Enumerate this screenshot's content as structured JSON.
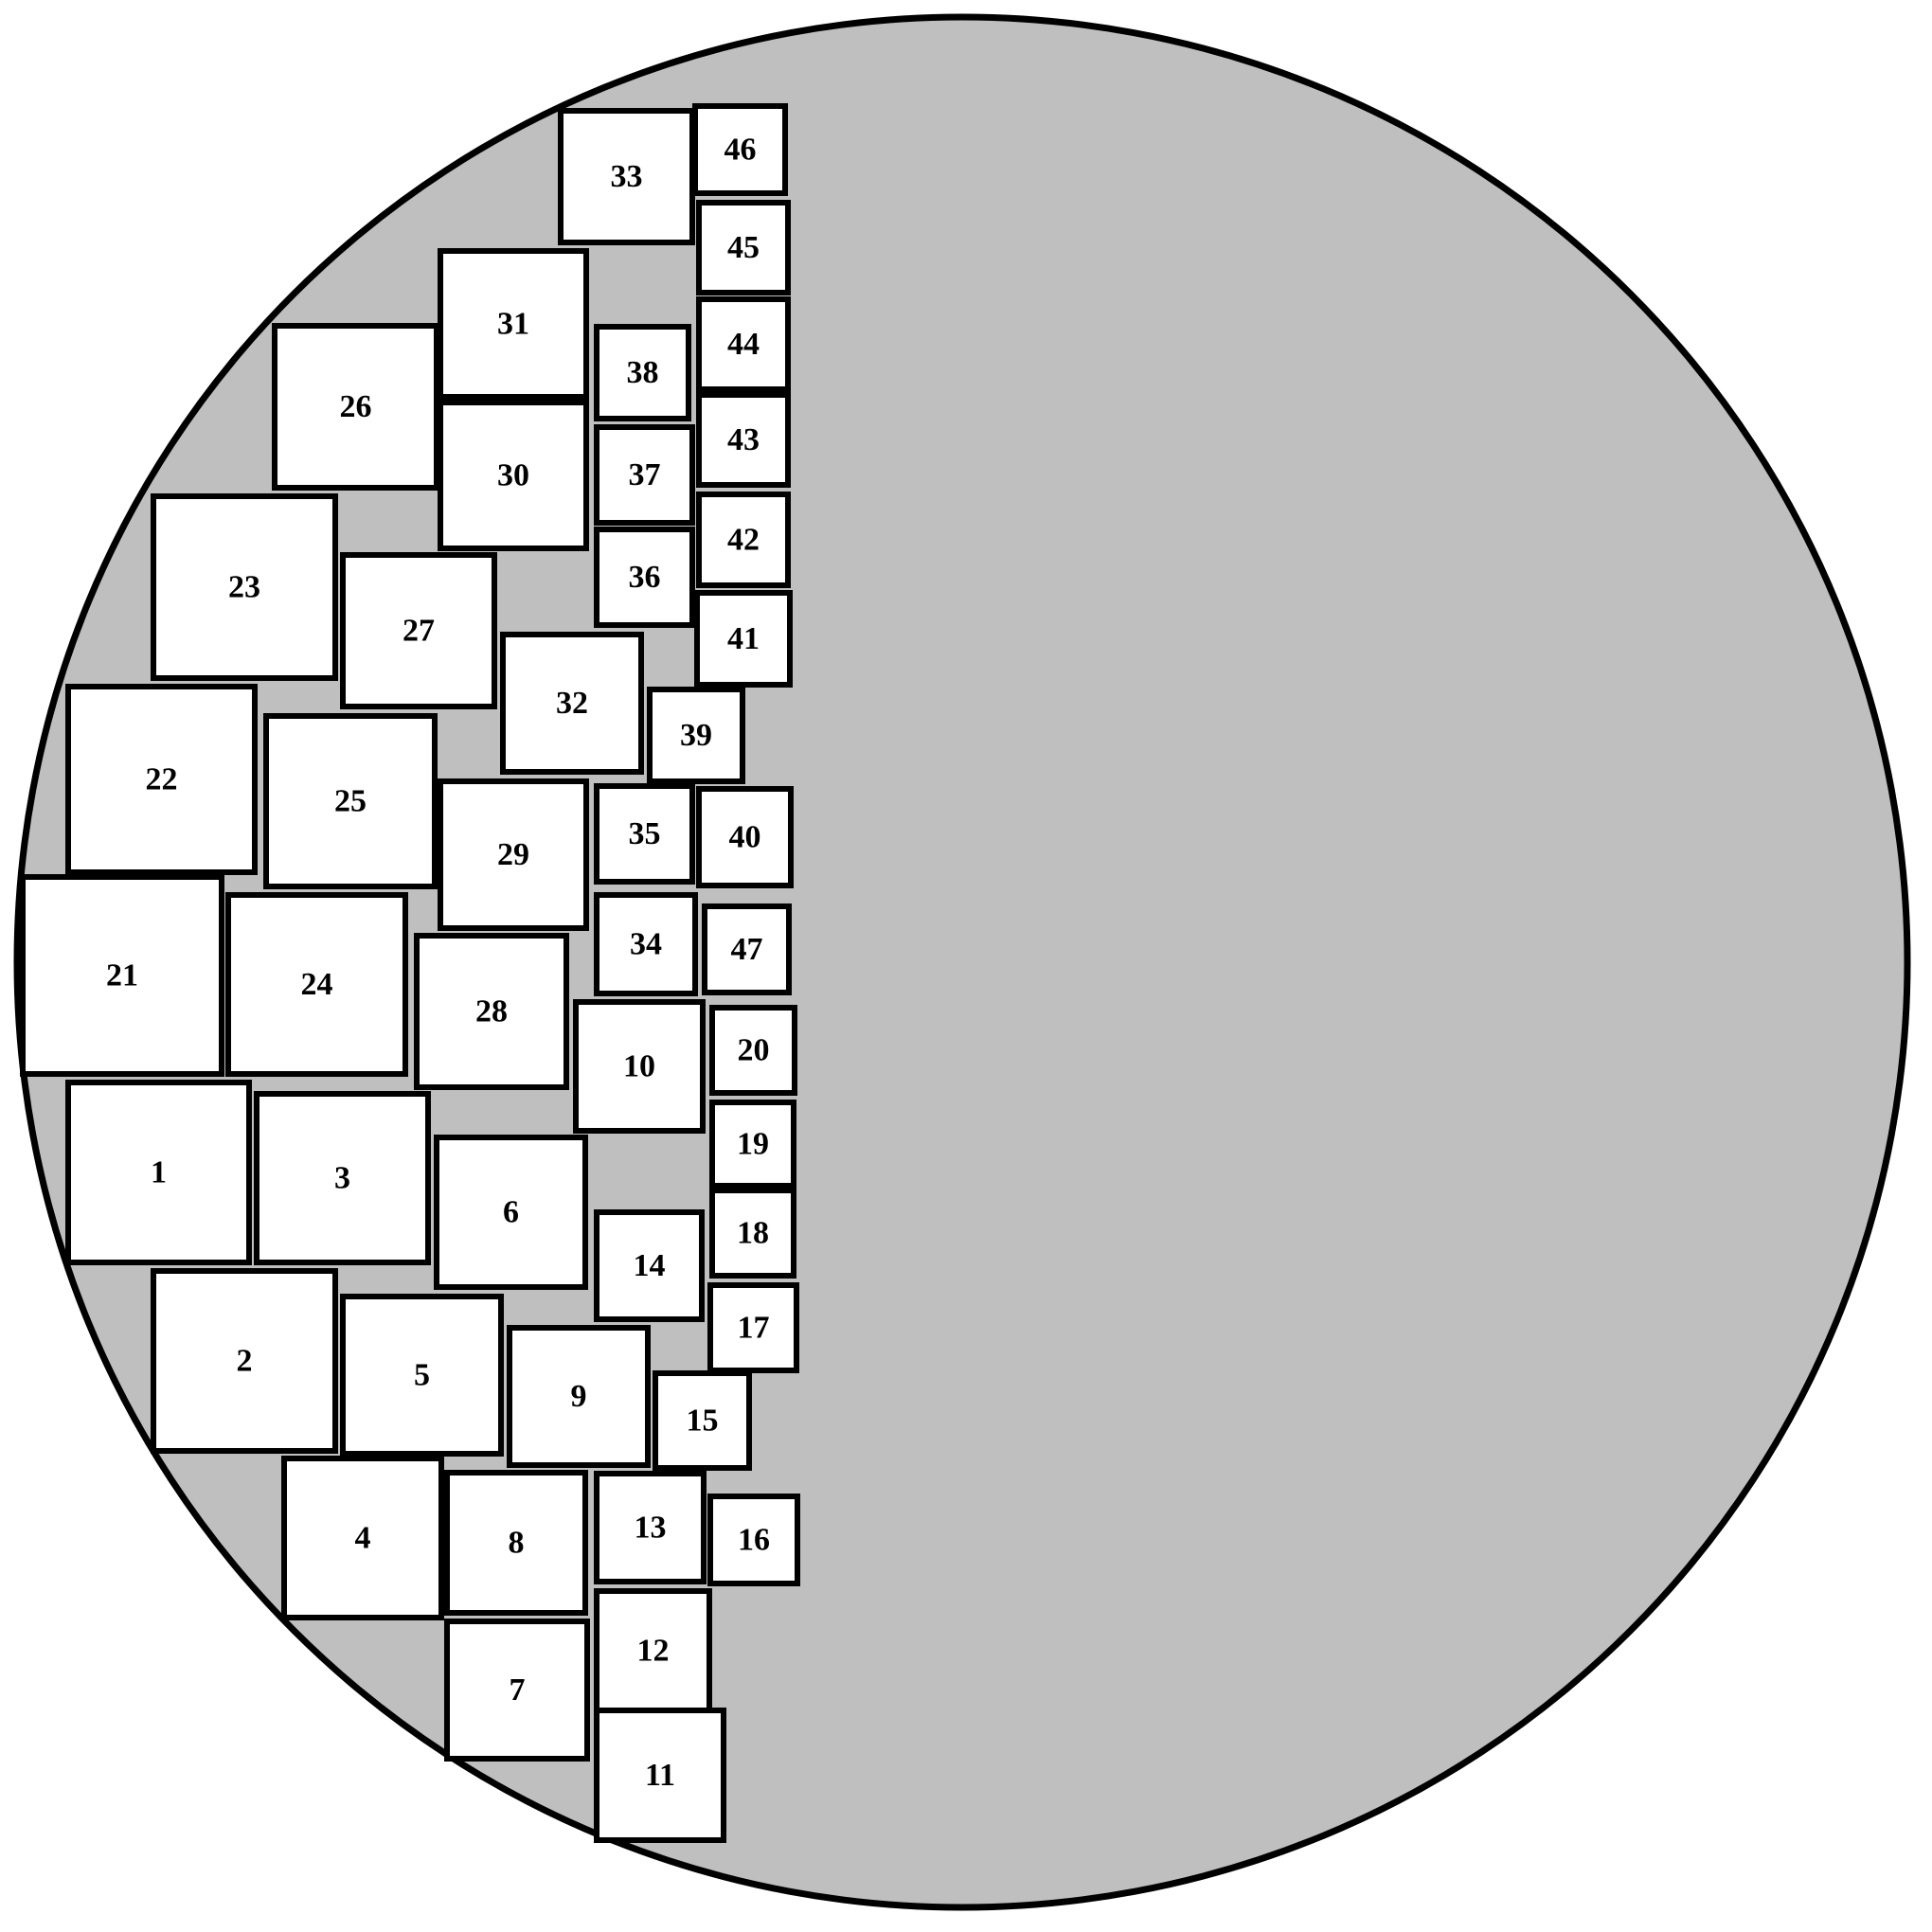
{
  "colors": {
    "background": "#ffffff",
    "disc_fill": "#bfbfbf",
    "outline": "#000000",
    "box_fill": "#ffffff",
    "label": "#000000"
  },
  "boxes": [
    {
      "label": "1"
    },
    {
      "label": "2"
    },
    {
      "label": "3"
    },
    {
      "label": "4"
    },
    {
      "label": "5"
    },
    {
      "label": "6"
    },
    {
      "label": "7"
    },
    {
      "label": "8"
    },
    {
      "label": "9"
    },
    {
      "label": "10"
    },
    {
      "label": "11"
    },
    {
      "label": "12"
    },
    {
      "label": "13"
    },
    {
      "label": "14"
    },
    {
      "label": "15"
    },
    {
      "label": "16"
    },
    {
      "label": "17"
    },
    {
      "label": "18"
    },
    {
      "label": "19"
    },
    {
      "label": "20"
    },
    {
      "label": "21"
    },
    {
      "label": "22"
    },
    {
      "label": "23"
    },
    {
      "label": "24"
    },
    {
      "label": "25"
    },
    {
      "label": "26"
    },
    {
      "label": "27"
    },
    {
      "label": "28"
    },
    {
      "label": "29"
    },
    {
      "label": "30"
    },
    {
      "label": "31"
    },
    {
      "label": "32"
    },
    {
      "label": "33"
    },
    {
      "label": "34"
    },
    {
      "label": "35"
    },
    {
      "label": "36"
    },
    {
      "label": "37"
    },
    {
      "label": "38"
    },
    {
      "label": "39"
    },
    {
      "label": "40"
    },
    {
      "label": "41"
    },
    {
      "label": "42"
    },
    {
      "label": "43"
    },
    {
      "label": "44"
    },
    {
      "label": "45"
    },
    {
      "label": "46"
    },
    {
      "label": "47"
    }
  ]
}
